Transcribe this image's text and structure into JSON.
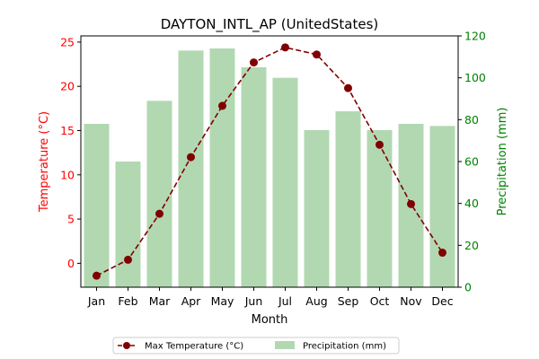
{
  "chart_data": {
    "type": "bar",
    "title": "DAYTON_INTL_AP (UnitedStates)",
    "xlabel": "Month",
    "ylabel_left": "Temperature (°C)",
    "ylabel_right": "Precipitation (mm)",
    "categories": [
      "Jan",
      "Feb",
      "Mar",
      "Apr",
      "May",
      "Jun",
      "Jul",
      "Aug",
      "Sep",
      "Oct",
      "Nov",
      "Dec"
    ],
    "y_left_lim": [
      -2.7,
      25.7
    ],
    "y_right_lim": [
      0,
      120
    ],
    "y_left_ticks": [
      0,
      5,
      10,
      15,
      20,
      25
    ],
    "y_right_ticks": [
      0,
      20,
      40,
      60,
      80,
      100,
      120
    ],
    "grid": false,
    "legend_position": "bottom-center",
    "series": [
      {
        "name": "Max Temperature (°C)",
        "kind": "line",
        "axis": "left",
        "color": "#800000",
        "values": [
          -1.4,
          0.4,
          5.6,
          12.0,
          17.8,
          22.7,
          24.4,
          23.6,
          19.8,
          13.4,
          6.7,
          1.2
        ]
      },
      {
        "name": "Precipitation (mm)",
        "kind": "bar",
        "axis": "right",
        "color": "#b2d8b2",
        "values": [
          78,
          60,
          89,
          113,
          114,
          105,
          100,
          75,
          84,
          75,
          78,
          77
        ]
      }
    ],
    "colors": {
      "left_axis": "#ff0000",
      "right_axis": "#008000",
      "line": "#800000",
      "bars": "#b2d8b2"
    }
  }
}
